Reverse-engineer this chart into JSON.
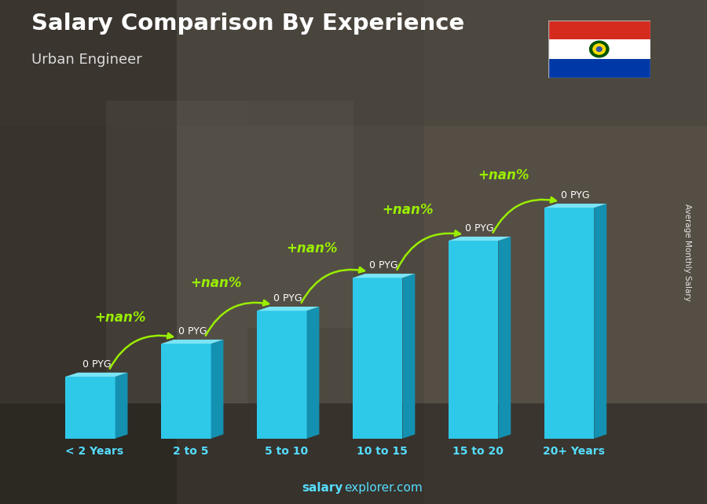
{
  "title": "Salary Comparison By Experience",
  "subtitle": "Urban Engineer",
  "categories": [
    "< 2 Years",
    "2 to 5",
    "5 to 10",
    "10 to 15",
    "15 to 20",
    "20+ Years"
  ],
  "bar_values_label": [
    "0 PYG",
    "0 PYG",
    "0 PYG",
    "0 PYG",
    "0 PYG",
    "0 PYG"
  ],
  "change_labels": [
    "+nan%",
    "+nan%",
    "+nan%",
    "+nan%",
    "+nan%"
  ],
  "bar_face_color": "#2ec8e8",
  "bar_side_color": "#1490b0",
  "bar_top_color": "#7ae4f5",
  "ylabel": "Average Monthly Salary",
  "title_color": "#ffffff",
  "subtitle_color": "#dddddd",
  "cat_color": "#55ddff",
  "arrow_color": "#99ee00",
  "change_color": "#99ee00",
  "value_label_color": "#ffffff",
  "watermark_bold": "salary",
  "watermark_normal": "explorer.com",
  "watermark_color": "#55ddff",
  "flag_colors": [
    "#d52b1e",
    "#ffffff",
    "#0038a8"
  ],
  "bar_heights": [
    1.5,
    2.3,
    3.1,
    3.9,
    4.8,
    5.6
  ],
  "bg_top_color": "#6b7a6a",
  "bg_bottom_color": "#3a3a3a",
  "overlay_color": "#1a1a1a",
  "overlay_alpha": 0.45
}
